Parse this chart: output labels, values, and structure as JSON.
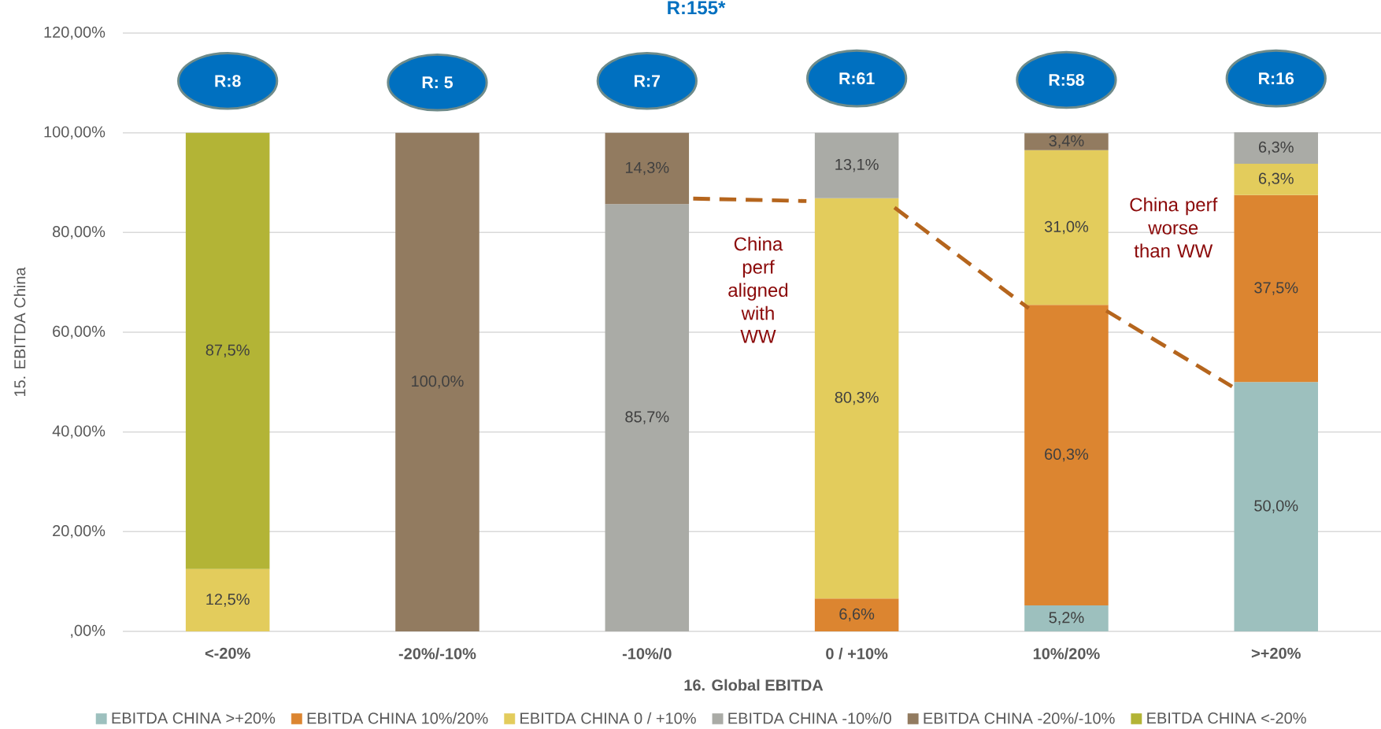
{
  "chart_data": {
    "type": "bar",
    "stacked": true,
    "title": "R:155*",
    "xlabel": "16. Global EBITDA",
    "ylabel": "15. EBITDA China",
    "categories": [
      "<-20%",
      "-20%/-10%",
      "-10%/0",
      "0 / +10%",
      "10%/20%",
      ">+20%"
    ],
    "series": [
      {
        "name": "EBITDA CHINA >+20%",
        "color": "#9dc0be",
        "values": [
          null,
          null,
          null,
          null,
          5.2,
          50.0
        ],
        "value_labels": [
          null,
          null,
          null,
          null,
          "5,2%",
          "50,0%"
        ]
      },
      {
        "name": "EBITDA CHINA 10%/20%",
        "color": "#dc8530",
        "values": [
          null,
          null,
          null,
          6.6,
          60.3,
          37.5
        ],
        "value_labels": [
          null,
          null,
          null,
          "6,6%",
          "60,3%",
          "37,5%"
        ]
      },
      {
        "name": "EBITDA CHINA 0 / +10%",
        "color": "#e3cc5c",
        "values": [
          12.5,
          null,
          null,
          80.3,
          31.0,
          6.3
        ],
        "value_labels": [
          "12,5%",
          null,
          null,
          "80,3%",
          "31,0%",
          "6,3%"
        ]
      },
      {
        "name": "EBITDA CHINA -10%/0",
        "color": "#aaaba6",
        "values": [
          null,
          null,
          85.7,
          13.1,
          null,
          6.3
        ],
        "value_labels": [
          null,
          null,
          "85,7%",
          "13,1%",
          null,
          "6,3%"
        ]
      },
      {
        "name": "EBITDA CHINA -20%/-10%",
        "color": "#927b60",
        "values": [
          null,
          100.0,
          14.3,
          null,
          3.4,
          null
        ],
        "value_labels": [
          null,
          "100,0%",
          "14,3%",
          null,
          "3,4%",
          null
        ]
      },
      {
        "name": "EBITDA CHINA <-20%",
        "color": "#b3b436",
        "values": [
          87.5,
          null,
          null,
          null,
          null,
          null
        ],
        "value_labels": [
          "87,5%",
          null,
          null,
          null,
          null,
          null
        ]
      }
    ],
    "ylim": [
      0,
      120
    ],
    "yticks": [
      {
        "value": 0,
        "label": ",00%"
      },
      {
        "value": 20,
        "label": "20,00%"
      },
      {
        "value": 40,
        "label": "40,00%"
      },
      {
        "value": 60,
        "label": "60,00%"
      },
      {
        "value": 80,
        "label": "80,00%"
      },
      {
        "value": 100,
        "label": "100,00%"
      },
      {
        "value": 120,
        "label": "120,00%"
      }
    ],
    "grid": "y",
    "legend": "bottom",
    "annotations": [
      "R:8",
      "R: 5",
      "R:7",
      "R:61",
      "R:58",
      "R:16",
      "China perf aligned with WW",
      "China perf worse than WW"
    ]
  }
}
